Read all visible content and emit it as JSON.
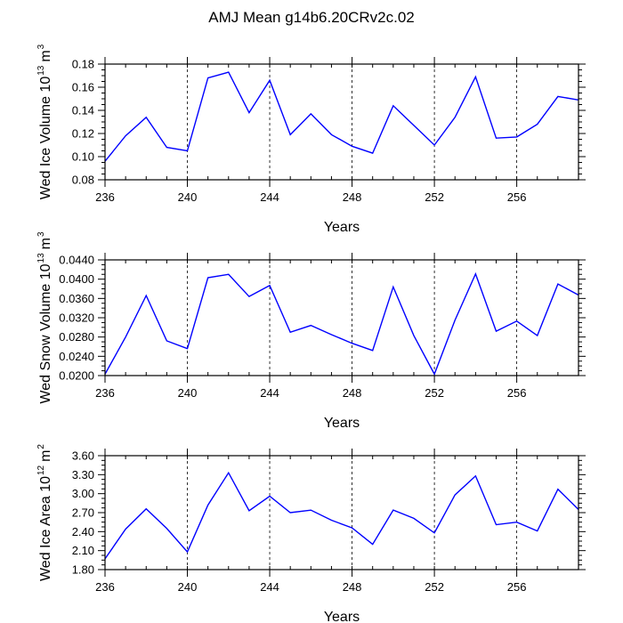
{
  "title": "AMJ Mean g14b6.20CRv2c.02",
  "colors": {
    "line": "#0000ff",
    "axis": "#000000",
    "grid": "#000000"
  },
  "chart_data": [
    {
      "type": "line",
      "name": "ice-volume",
      "ylabel_main": "Wed Ice Volume 10",
      "ylabel_exp": "13",
      "ylabel_unit": "m",
      "ylabel_unit_exp": "3",
      "xlabel": "Years",
      "xlim": [
        236,
        259
      ],
      "ylim": [
        0.08,
        0.18
      ],
      "xticks": [
        236,
        240,
        244,
        248,
        252,
        256
      ],
      "yticks": [
        "0.08",
        "0.10",
        "0.12",
        "0.14",
        "0.16",
        "0.18"
      ],
      "grid_x": [
        240,
        244,
        248,
        252,
        256
      ],
      "x": [
        236,
        237,
        238,
        239,
        240,
        241,
        242,
        243,
        244,
        245,
        246,
        247,
        248,
        249,
        250,
        251,
        252,
        253,
        254,
        255,
        256,
        257,
        258,
        259
      ],
      "values": [
        0.096,
        0.118,
        0.134,
        0.108,
        0.105,
        0.168,
        0.173,
        0.138,
        0.166,
        0.119,
        0.137,
        0.119,
        0.109,
        0.103,
        0.144,
        0.127,
        0.11,
        0.134,
        0.169,
        0.116,
        0.117,
        0.128,
        0.152,
        0.149
      ]
    },
    {
      "type": "line",
      "name": "snow-volume",
      "ylabel_main": "Wed Snow Volume 10",
      "ylabel_exp": "13",
      "ylabel_unit": "m",
      "ylabel_unit_exp": "3",
      "xlabel": "Years",
      "xlim": [
        236,
        259
      ],
      "ylim": [
        0.02,
        0.044
      ],
      "xticks": [
        236,
        240,
        244,
        248,
        252,
        256
      ],
      "yticks": [
        "0.0200",
        "0.0240",
        "0.0280",
        "0.0320",
        "0.0360",
        "0.0400",
        "0.0440"
      ],
      "grid_x": [
        240,
        244,
        248,
        252,
        256
      ],
      "x": [
        236,
        237,
        238,
        239,
        240,
        241,
        242,
        243,
        244,
        245,
        246,
        247,
        248,
        249,
        250,
        251,
        252,
        253,
        254,
        255,
        256,
        257,
        258,
        259
      ],
      "values": [
        0.0203,
        0.028,
        0.0366,
        0.0272,
        0.0256,
        0.0403,
        0.041,
        0.0364,
        0.0387,
        0.029,
        0.0304,
        0.0285,
        0.0267,
        0.0252,
        0.0384,
        0.0283,
        0.0203,
        0.0315,
        0.0411,
        0.0292,
        0.0313,
        0.0283,
        0.039,
        0.0367
      ]
    },
    {
      "type": "line",
      "name": "ice-area",
      "ylabel_main": "Wed Ice Area 10",
      "ylabel_exp": "12",
      "ylabel_unit": "m",
      "ylabel_unit_exp": "2",
      "xlabel": "Years",
      "xlim": [
        236,
        259
      ],
      "ylim": [
        1.8,
        3.6
      ],
      "xticks": [
        236,
        240,
        244,
        248,
        252,
        256
      ],
      "yticks": [
        "1.80",
        "2.10",
        "2.40",
        "2.70",
        "3.00",
        "3.30",
        "3.60"
      ],
      "grid_x": [
        240,
        244,
        248,
        252,
        256
      ],
      "x": [
        236,
        237,
        238,
        239,
        240,
        241,
        242,
        243,
        244,
        245,
        246,
        247,
        248,
        249,
        250,
        251,
        252,
        253,
        254,
        255,
        256,
        257,
        258,
        259
      ],
      "values": [
        1.97,
        2.44,
        2.76,
        2.45,
        2.08,
        2.82,
        3.33,
        2.73,
        2.96,
        2.7,
        2.74,
        2.58,
        2.46,
        2.2,
        2.74,
        2.61,
        2.38,
        2.98,
        3.28,
        2.51,
        2.55,
        2.41,
        3.07,
        2.75
      ]
    }
  ]
}
